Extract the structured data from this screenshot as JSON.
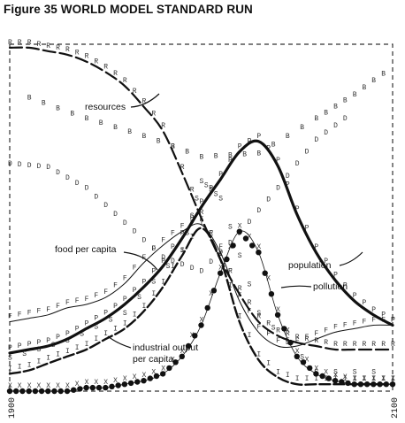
{
  "figure_title": "Figure 35 WORLD MODEL STANDARD RUN",
  "chart_data": {
    "type": "line",
    "title": "Figure 35 WORLD MODEL STANDARD RUN",
    "xlabel": "",
    "ylabel": "",
    "x_range": [
      1900,
      2100
    ],
    "x_tick_labels": [
      "1900",
      "2100"
    ],
    "y_range": [
      0,
      1
    ],
    "grid": false,
    "legend": "inline labels with arrows",
    "x": [
      1900,
      1910,
      1920,
      1930,
      1940,
      1950,
      1960,
      1970,
      1980,
      1990,
      2000,
      2010,
      2020,
      2030,
      2040,
      2050,
      2060,
      2070,
      2080,
      2090,
      2100
    ],
    "series": [
      {
        "name": "resources",
        "values": [
          0.99,
          0.99,
          0.98,
          0.97,
          0.95,
          0.92,
          0.88,
          0.82,
          0.75,
          0.63,
          0.5,
          0.38,
          0.28,
          0.2,
          0.16,
          0.14,
          0.13,
          0.12,
          0.12,
          0.12,
          0.12
        ]
      },
      {
        "name": "population",
        "values": [
          0.11,
          0.12,
          0.13,
          0.15,
          0.18,
          0.21,
          0.25,
          0.3,
          0.36,
          0.44,
          0.53,
          0.61,
          0.69,
          0.72,
          0.65,
          0.51,
          0.4,
          0.32,
          0.26,
          0.22,
          0.19
        ]
      },
      {
        "name": "food per capita",
        "values": [
          0.2,
          0.21,
          0.22,
          0.24,
          0.25,
          0.27,
          0.31,
          0.37,
          0.42,
          0.46,
          0.48,
          0.4,
          0.26,
          0.17,
          0.13,
          0.13,
          0.15,
          0.17,
          0.18,
          0.19,
          0.19
        ]
      },
      {
        "name": "industrial output per capita",
        "values": [
          0.05,
          0.06,
          0.08,
          0.1,
          0.12,
          0.15,
          0.18,
          0.23,
          0.3,
          0.39,
          0.47,
          0.38,
          0.2,
          0.09,
          0.04,
          0.02,
          0.02,
          0.02,
          0.02,
          0.02,
          0.02
        ]
      },
      {
        "name": "pollution",
        "values": [
          0.0,
          0.0,
          0.0,
          0.0,
          0.01,
          0.01,
          0.02,
          0.03,
          0.05,
          0.1,
          0.19,
          0.34,
          0.46,
          0.4,
          0.22,
          0.1,
          0.05,
          0.03,
          0.02,
          0.02,
          0.02
        ]
      }
    ],
    "annotations": [
      "resources",
      "food per capita",
      "population",
      "pollution",
      "industrial output per capita"
    ]
  },
  "labels": {
    "resources": "resources",
    "food_per_capita": "food per capita",
    "population": "population",
    "pollution": "pollution",
    "industrial_line1": "industrial output",
    "industrial_line2": "per capita",
    "year_start": "1900",
    "year_end": "2100"
  },
  "marker_letters": {
    "resources": "R",
    "population": "P",
    "food_per_capita": "F",
    "industrial": "I",
    "pollution": "X",
    "birth_rate": "B",
    "death_rate": "D",
    "services": "S"
  }
}
